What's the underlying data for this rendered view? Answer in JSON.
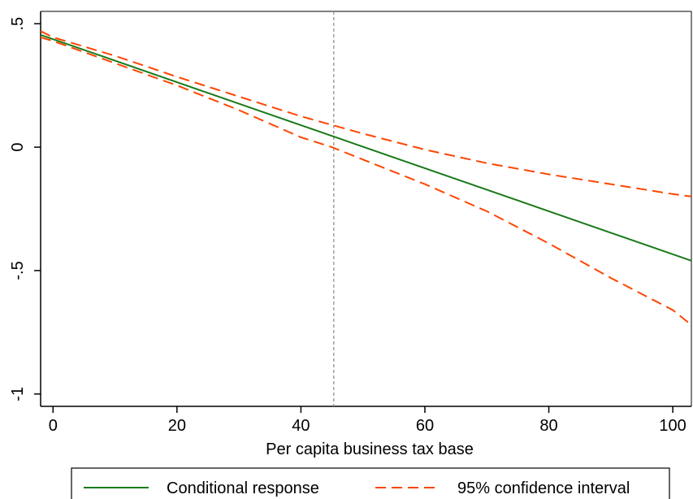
{
  "chart_data": {
    "type": "line",
    "xlabel": "Per capita business tax base",
    "ylabel": "",
    "xlim": [
      -2,
      103
    ],
    "ylim": [
      -1.05,
      0.55
    ],
    "x_ticks": [
      0,
      20,
      40,
      60,
      80,
      100
    ],
    "x_tick_labels": [
      "0",
      "20",
      "40",
      "60",
      "80",
      "100"
    ],
    "y_ticks": [
      0.5,
      0,
      -0.5,
      -1
    ],
    "y_tick_labels": [
      ".5",
      "0",
      "-.5",
      "-1"
    ],
    "reference_line": {
      "x": 45.3,
      "style": "dashed",
      "color": "#888888"
    },
    "grid": false,
    "legend_position": "bottom",
    "series": [
      {
        "name": "Conditional response",
        "color": "#1a7a1a",
        "dash": "solid",
        "x": [
          -2,
          103
        ],
        "y": [
          0.455,
          -0.46
        ]
      },
      {
        "name": "95% confidence interval",
        "color": "#ff4500",
        "dash": "dashed",
        "x": [
          -2,
          0,
          10,
          20,
          30,
          40,
          45,
          50,
          60,
          70,
          80,
          90,
          100,
          103
        ],
        "y": [
          0.47,
          0.445,
          0.37,
          0.285,
          0.205,
          0.125,
          0.09,
          0.055,
          -0.01,
          -0.065,
          -0.11,
          -0.15,
          -0.19,
          -0.2
        ]
      },
      {
        "name": "",
        "color": "#ff4500",
        "dash": "dashed",
        "x": [
          -2,
          0,
          10,
          20,
          30,
          40,
          45,
          50,
          60,
          70,
          80,
          90,
          100,
          103
        ],
        "y": [
          0.445,
          0.43,
          0.34,
          0.25,
          0.15,
          0.04,
          0.0,
          -0.05,
          -0.15,
          -0.26,
          -0.39,
          -0.53,
          -0.66,
          -0.72
        ]
      }
    ]
  }
}
